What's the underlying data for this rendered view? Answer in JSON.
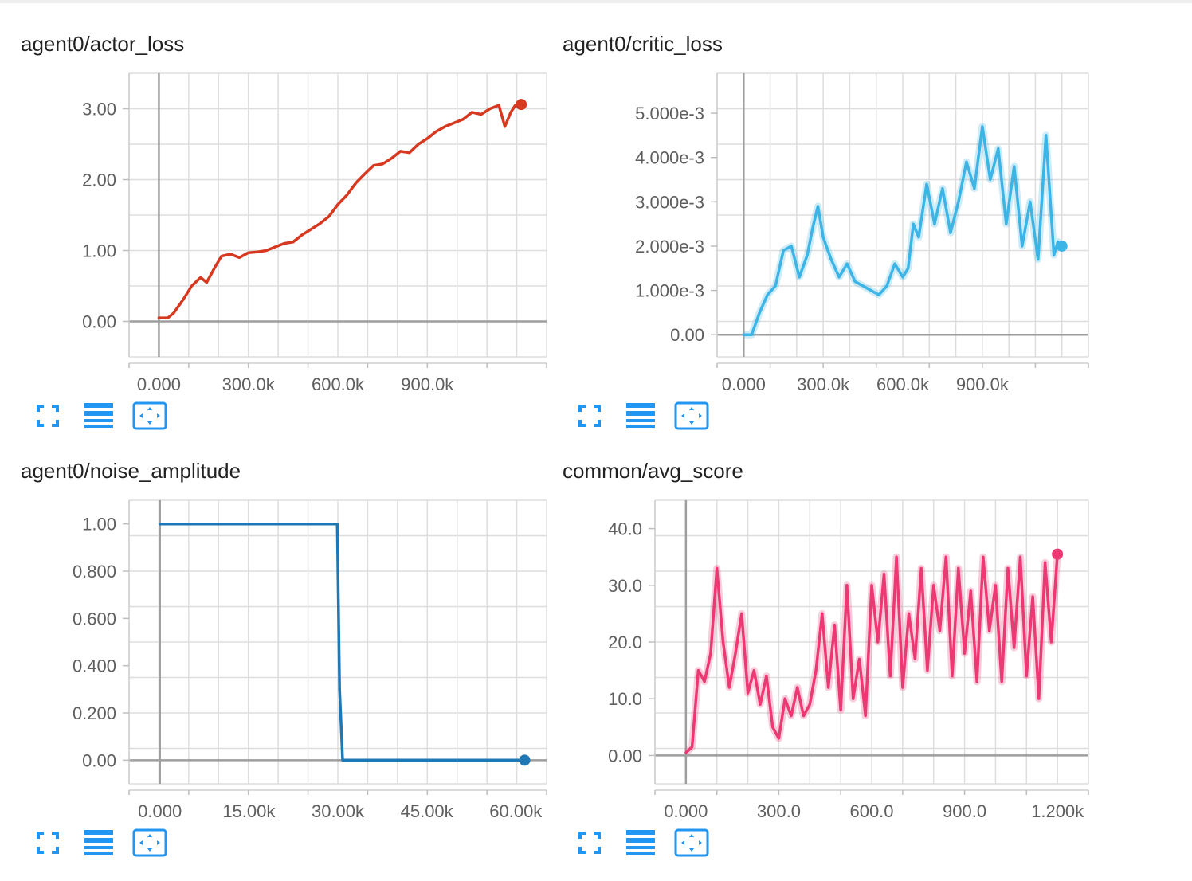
{
  "toolbar": {
    "icons": [
      "fullscreen-icon",
      "list-icon",
      "fit-domain-icon"
    ],
    "color": "#2196f3"
  },
  "chart_data": [
    {
      "type": "line",
      "title": "agent0/actor_loss",
      "color": "#d6391f",
      "smooth": false,
      "xlim": [
        -100000.0,
        1300000.0
      ],
      "ylim": [
        -0.5,
        3.5
      ],
      "xticks": [
        0,
        300000,
        600000,
        900000
      ],
      "x_tick_labels": [
        "0.000",
        "300.0k",
        "600.0k",
        "900.0k"
      ],
      "yticks": [
        0,
        1,
        2,
        3
      ],
      "y_tick_labels": [
        "0.00",
        "1.00",
        "2.00",
        "3.00"
      ],
      "series": [
        {
          "x": [
            0,
            30000,
            50000,
            80000,
            110000,
            140000,
            160000,
            190000,
            210000,
            240000,
            270000,
            300000,
            330000,
            360000,
            390000,
            420000,
            450000,
            480000,
            510000,
            540000,
            570000,
            600000,
            630000,
            660000,
            690000,
            720000,
            750000,
            780000,
            810000,
            840000,
            870000,
            900000,
            930000,
            960000,
            990000,
            1020000,
            1050000,
            1080000,
            1110000,
            1140000,
            1160000,
            1180000,
            1195000,
            1215000
          ],
          "y": [
            0.05,
            0.05,
            0.12,
            0.3,
            0.5,
            0.62,
            0.55,
            0.78,
            0.92,
            0.95,
            0.9,
            0.97,
            0.98,
            1.0,
            1.05,
            1.1,
            1.12,
            1.22,
            1.3,
            1.38,
            1.48,
            1.65,
            1.78,
            1.95,
            2.08,
            2.2,
            2.22,
            2.3,
            2.4,
            2.38,
            2.5,
            2.58,
            2.68,
            2.75,
            2.8,
            2.85,
            2.95,
            2.92,
            3.0,
            3.05,
            2.75,
            2.95,
            3.05,
            3.06
          ]
        }
      ]
    },
    {
      "type": "line",
      "title": "agent0/critic_loss",
      "color": "#3cb4e5",
      "smooth": true,
      "xlim": [
        -100000.0,
        1300000.0
      ],
      "ylim": [
        -0.0005,
        0.0059
      ],
      "xticks": [
        0,
        300000,
        600000,
        900000
      ],
      "x_tick_labels": [
        "0.000",
        "300.0k",
        "600.0k",
        "900.0k"
      ],
      "yticks": [
        0,
        0.001,
        0.002,
        0.003,
        0.004,
        0.005
      ],
      "y_tick_labels": [
        "0.00",
        "1.000e-3",
        "2.000e-3",
        "3.000e-3",
        "4.000e-3",
        "5.000e-3"
      ],
      "series": [
        {
          "x": [
            0,
            30000,
            60000,
            90000,
            120000,
            150000,
            180000,
            210000,
            240000,
            260000,
            280000,
            300000,
            330000,
            360000,
            390000,
            420000,
            450000,
            480000,
            510000,
            540000,
            570000,
            600000,
            620000,
            640000,
            660000,
            690000,
            720000,
            750000,
            780000,
            810000,
            840000,
            870000,
            900000,
            930000,
            960000,
            990000,
            1020000,
            1050000,
            1080000,
            1110000,
            1140000,
            1170000,
            1185000,
            1200000
          ],
          "y": [
            0.0,
            0.0,
            0.0005,
            0.0009,
            0.0011,
            0.0019,
            0.002,
            0.0013,
            0.0018,
            0.0024,
            0.0029,
            0.0022,
            0.0017,
            0.0013,
            0.0016,
            0.0012,
            0.0011,
            0.001,
            0.0009,
            0.0011,
            0.0016,
            0.0013,
            0.0015,
            0.0025,
            0.0022,
            0.0034,
            0.0025,
            0.0033,
            0.0023,
            0.003,
            0.0039,
            0.0033,
            0.0047,
            0.0035,
            0.0042,
            0.0025,
            0.0038,
            0.002,
            0.003,
            0.0017,
            0.0045,
            0.0018,
            0.0021,
            0.002
          ]
        }
      ]
    },
    {
      "type": "line",
      "title": "agent0/noise_amplitude",
      "color": "#1f77b4",
      "smooth": false,
      "xlim": [
        -5200,
        65200
      ],
      "ylim": [
        -0.1,
        1.1
      ],
      "xticks": [
        0,
        15000,
        30000,
        45000,
        60000
      ],
      "x_tick_labels": [
        "0.000",
        "15.00k",
        "30.00k",
        "45.00k",
        "60.00k"
      ],
      "yticks": [
        0,
        0.2,
        0.4,
        0.6,
        0.8,
        1.0
      ],
      "y_tick_labels": [
        "0.00",
        "0.200",
        "0.400",
        "0.600",
        "0.800",
        "1.00"
      ],
      "series": [
        {
          "x": [
            0,
            29900,
            30300,
            30800,
            61500
          ],
          "y": [
            1.0,
            1.0,
            0.3,
            0.0,
            0.0
          ]
        }
      ]
    },
    {
      "type": "line",
      "title": "common/avg_score",
      "color": "#ec3973",
      "smooth": true,
      "xlim": [
        -100,
        1300
      ],
      "ylim": [
        -5,
        45
      ],
      "xticks": [
        0,
        300,
        600,
        900,
        1200
      ],
      "x_tick_labels": [
        "0.000",
        "300.0",
        "600.0",
        "900.0",
        "1.200k"
      ],
      "yticks": [
        0,
        10,
        20,
        30,
        40
      ],
      "y_tick_labels": [
        "0.00",
        "10.0",
        "20.0",
        "30.0",
        "40.0"
      ],
      "series": [
        {
          "x": [
            0,
            20,
            40,
            60,
            80,
            100,
            120,
            140,
            160,
            180,
            200,
            220,
            240,
            260,
            280,
            300,
            320,
            340,
            360,
            380,
            400,
            420,
            440,
            460,
            480,
            500,
            520,
            540,
            560,
            580,
            600,
            620,
            640,
            660,
            680,
            700,
            720,
            740,
            760,
            780,
            800,
            820,
            840,
            860,
            880,
            900,
            920,
            940,
            960,
            980,
            1000,
            1020,
            1040,
            1060,
            1080,
            1100,
            1120,
            1140,
            1160,
            1180,
            1200
          ],
          "y": [
            0.5,
            1.5,
            15,
            13,
            18,
            33,
            20,
            12,
            18,
            25,
            11,
            15,
            9,
            14,
            5,
            3,
            10,
            7,
            12,
            7,
            9,
            15,
            25,
            12,
            23,
            8,
            30,
            10,
            17,
            7,
            30,
            20,
            32,
            14,
            35,
            12,
            25,
            17,
            33,
            15,
            30,
            22,
            35,
            14,
            33,
            18,
            29,
            13,
            35,
            22,
            30,
            13,
            33,
            19,
            35,
            14,
            28,
            10,
            34,
            20,
            35.5
          ]
        }
      ]
    }
  ]
}
